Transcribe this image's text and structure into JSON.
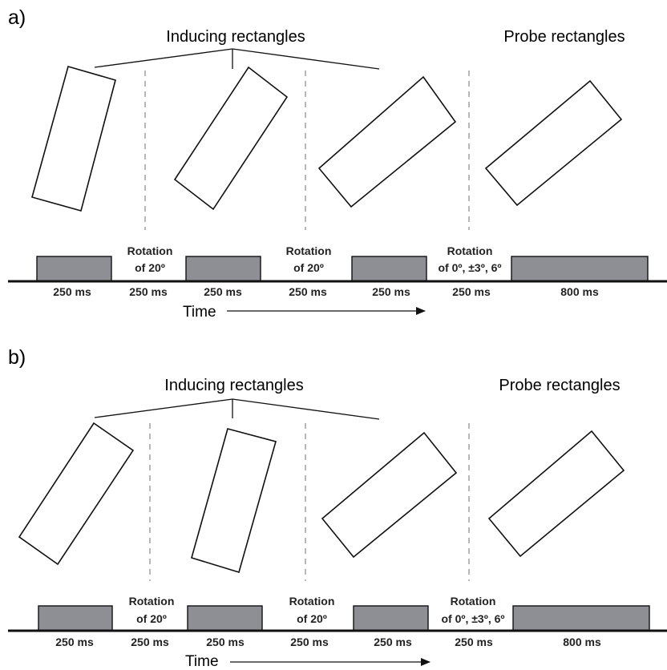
{
  "panels": [
    {
      "label": "a)",
      "inducing_title": "Inducing rectangles",
      "probe_title": "Probe rectangles",
      "rotations": [
        {
          "line1": "Rotation",
          "line2": "of 20º"
        },
        {
          "line1": "Rotation",
          "line2": "of 20º"
        },
        {
          "line1": "Rotation",
          "line2": "of 0º, ±3º, 6º"
        }
      ],
      "durations": [
        "250 ms",
        "250 ms",
        "250 ms",
        "250 ms",
        "250 ms",
        "250 ms",
        "800 ms"
      ],
      "time_label": "Time"
    },
    {
      "label": "b)",
      "inducing_title": "Inducing rectangles",
      "probe_title": "Probe rectangles",
      "rotations": [
        {
          "line1": "Rotation",
          "line2": "of 20º"
        },
        {
          "line1": "Rotation",
          "line2": "of 20º"
        },
        {
          "line1": "Rotation",
          "line2": "of 0º, ±3º, 6º"
        }
      ],
      "durations": [
        "250 ms",
        "250 ms",
        "250 ms",
        "250 ms",
        "250 ms",
        "250 ms",
        "800 ms"
      ],
      "time_label": "Time"
    }
  ]
}
